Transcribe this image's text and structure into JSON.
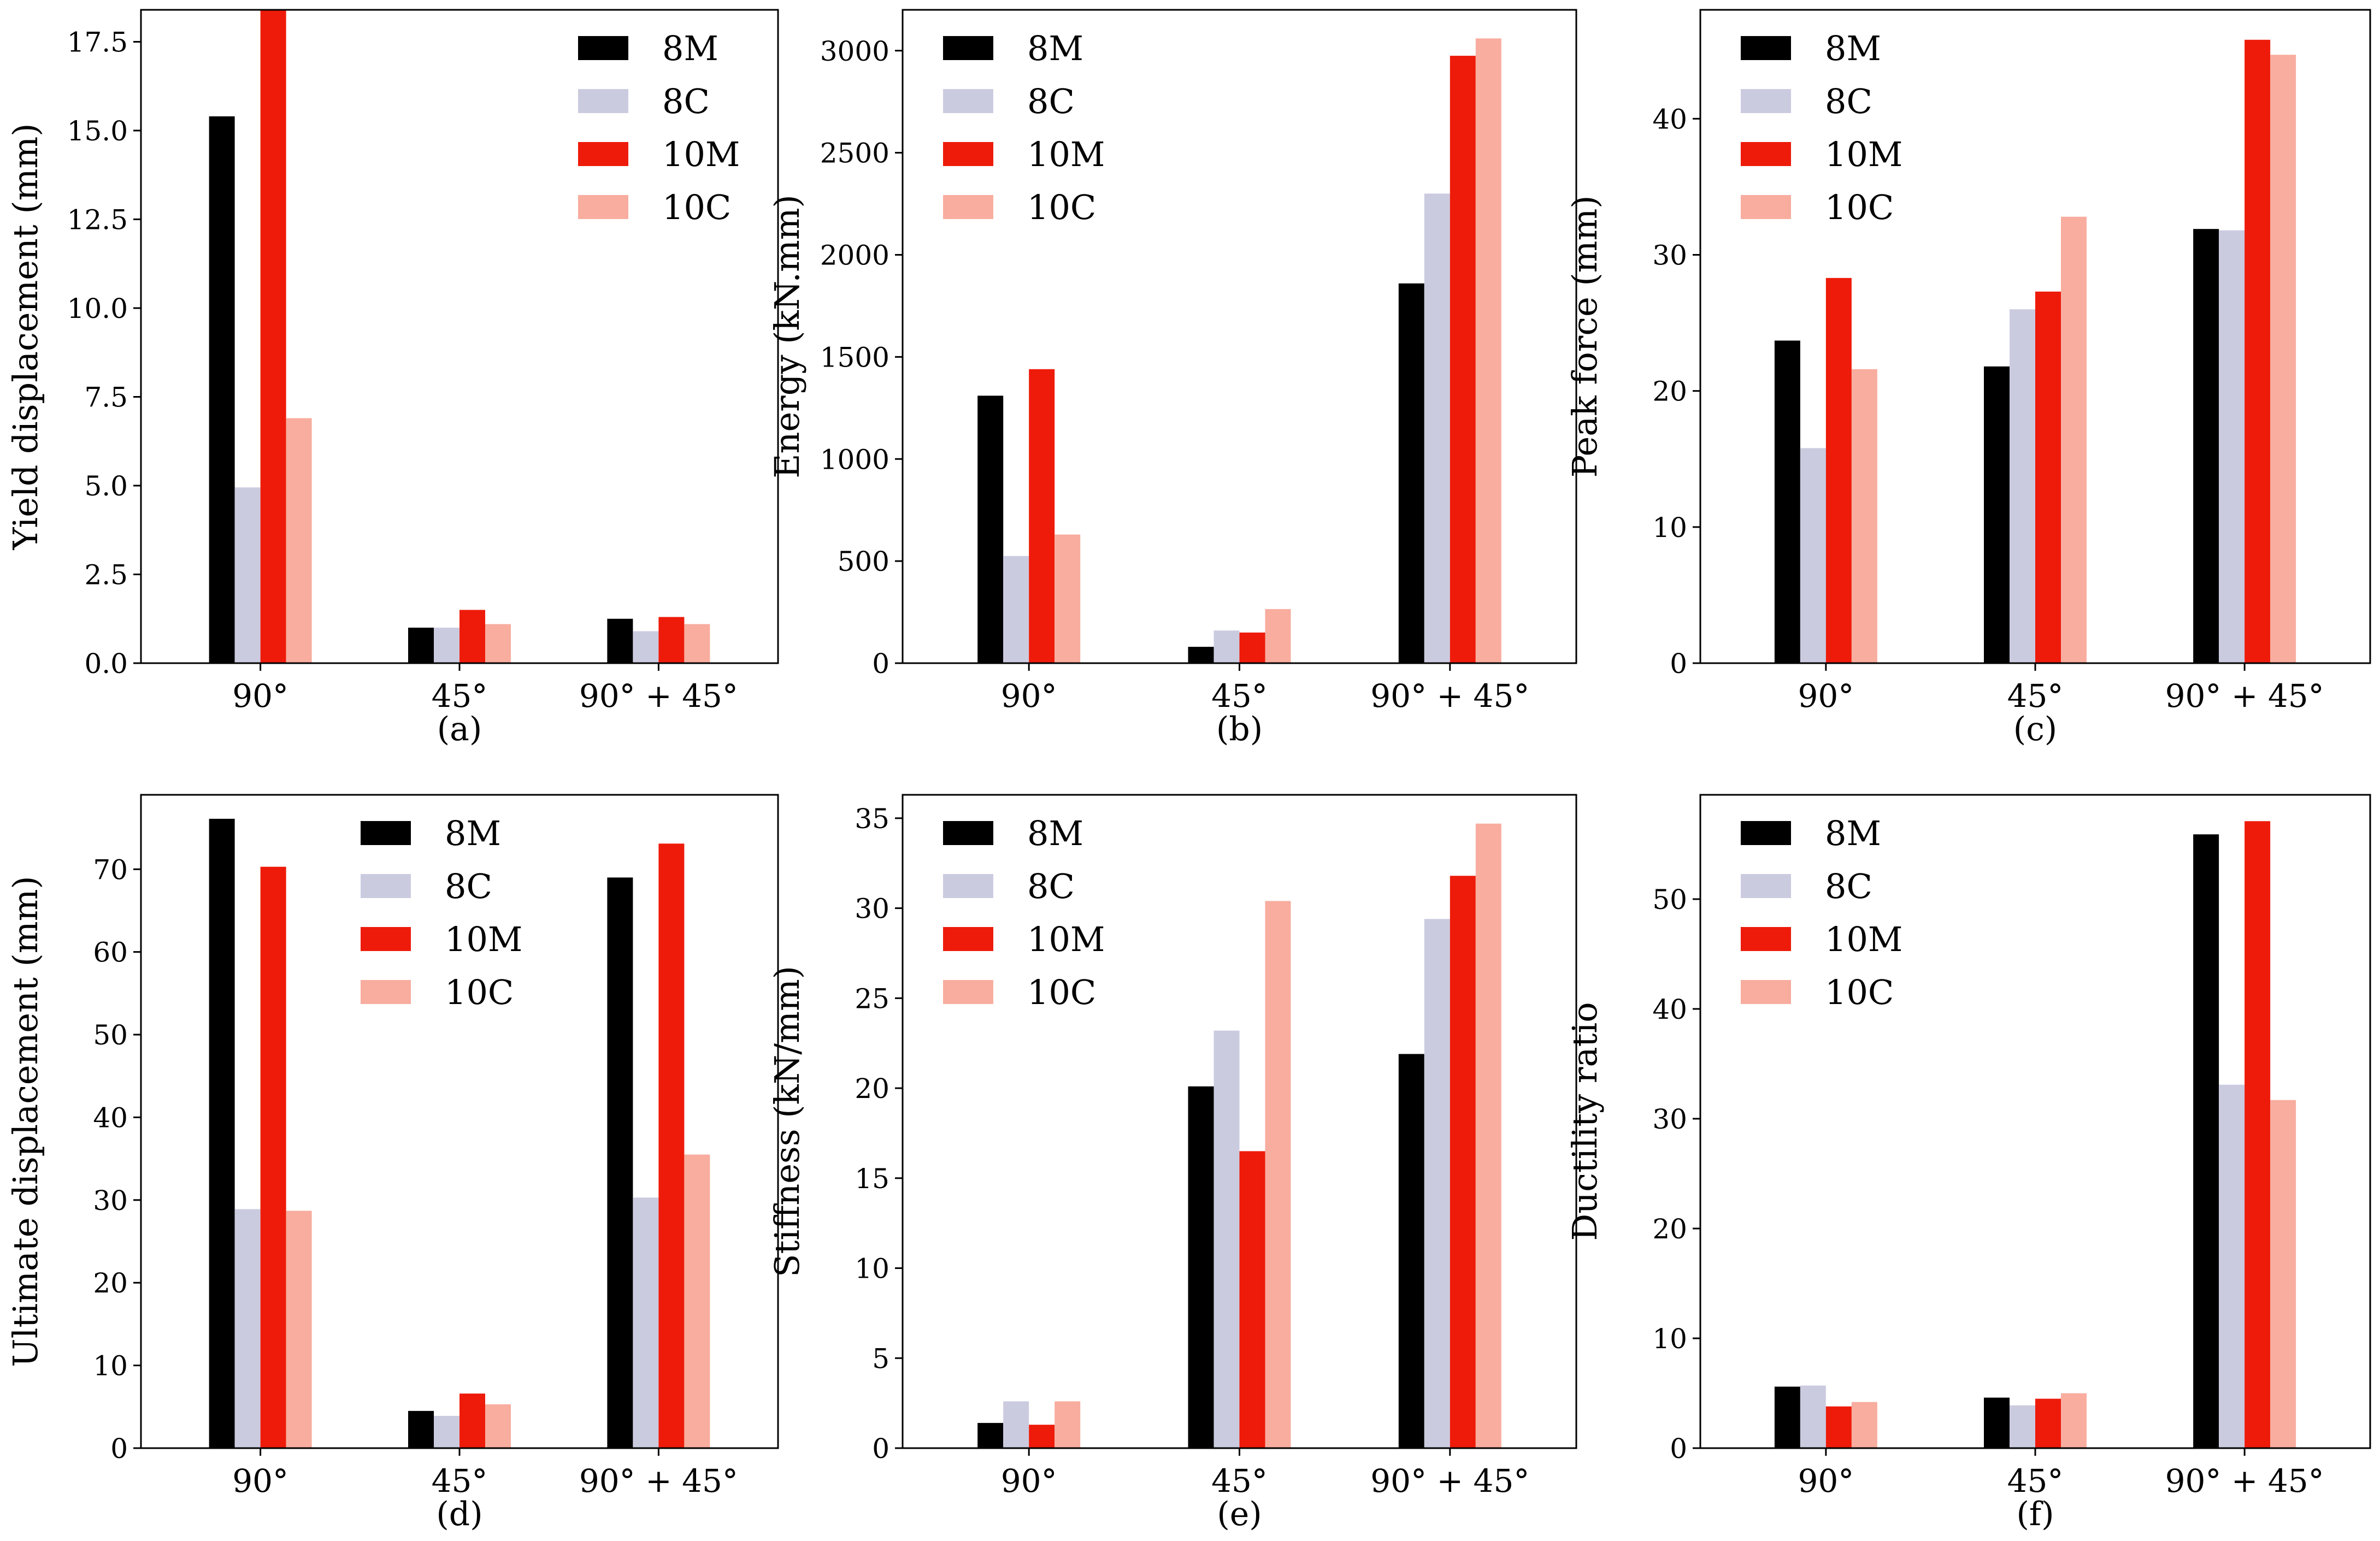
{
  "colors": {
    "8M": "#000000",
    "8C": "#cbcbe0",
    "10M": "#ee1b0a",
    "10C": "#f8ad9f"
  },
  "chart_data": [
    {
      "id": "a",
      "type": "bar",
      "caption": "(a)",
      "ylabel": "Yield displacement (mm)",
      "categories": [
        "90°",
        "45°",
        "90° + 45°"
      ],
      "ylim": [
        0,
        18.4
      ],
      "yticks": [
        0,
        2.5,
        5,
        7.5,
        10,
        12.5,
        15,
        17.5
      ],
      "ytick_labels": [
        "0.0",
        "2.5",
        "5.0",
        "7.5",
        "10.0",
        "12.5",
        "15.0",
        "17.5"
      ],
      "legend_position": "top-right",
      "series": [
        {
          "name": "8M",
          "values": [
            15.4,
            1.0,
            1.25
          ]
        },
        {
          "name": "8C",
          "values": [
            4.95,
            1.0,
            0.9
          ]
        },
        {
          "name": "10M",
          "values": [
            18.4,
            1.5,
            1.3
          ]
        },
        {
          "name": "10C",
          "values": [
            6.9,
            1.1,
            1.1
          ]
        }
      ]
    },
    {
      "id": "b",
      "type": "bar",
      "caption": "(b)",
      "ylabel": "Energy (kN.mm)",
      "categories": [
        "90°",
        "45°",
        "90° + 45°"
      ],
      "ylim": [
        0,
        3200
      ],
      "yticks": [
        0,
        500,
        1000,
        1500,
        2000,
        2500,
        3000
      ],
      "ytick_labels": [
        "0",
        "500",
        "1000",
        "1500",
        "2000",
        "2500",
        "3000"
      ],
      "legend_position": "top-left",
      "series": [
        {
          "name": "8M",
          "values": [
            1310,
            80,
            1860
          ]
        },
        {
          "name": "8C",
          "values": [
            525,
            160,
            2300
          ]
        },
        {
          "name": "10M",
          "values": [
            1440,
            150,
            2975
          ]
        },
        {
          "name": "10C",
          "values": [
            630,
            265,
            3060
          ]
        }
      ]
    },
    {
      "id": "c",
      "type": "bar",
      "caption": "(c)",
      "ylabel": "Peak force (mm)",
      "categories": [
        "90°",
        "45°",
        "90° + 45°"
      ],
      "ylim": [
        0,
        48
      ],
      "yticks": [
        0,
        10,
        20,
        30,
        40
      ],
      "ytick_labels": [
        "0",
        "10",
        "20",
        "30",
        "40"
      ],
      "legend_position": "top-left",
      "series": [
        {
          "name": "8M",
          "values": [
            23.7,
            21.8,
            31.9
          ]
        },
        {
          "name": "8C",
          "values": [
            15.8,
            26.0,
            31.8
          ]
        },
        {
          "name": "10M",
          "values": [
            28.3,
            27.3,
            45.8
          ]
        },
        {
          "name": "10C",
          "values": [
            21.6,
            32.8,
            44.7
          ]
        }
      ]
    },
    {
      "id": "d",
      "type": "bar",
      "caption": "(d)",
      "ylabel": "Ultimate displacement (mm)",
      "categories": [
        "90°",
        "45°",
        "90° + 45°"
      ],
      "ylim": [
        0,
        79
      ],
      "yticks": [
        0,
        10,
        20,
        30,
        40,
        50,
        60,
        70
      ],
      "ytick_labels": [
        "0",
        "10",
        "20",
        "30",
        "40",
        "50",
        "60",
        "70"
      ],
      "legend_position": "top-center",
      "series": [
        {
          "name": "8M",
          "values": [
            76.1,
            4.5,
            69.0
          ]
        },
        {
          "name": "8C",
          "values": [
            28.9,
            3.9,
            30.3
          ]
        },
        {
          "name": "10M",
          "values": [
            70.3,
            6.6,
            73.1
          ]
        },
        {
          "name": "10C",
          "values": [
            28.7,
            5.3,
            35.5
          ]
        }
      ]
    },
    {
      "id": "e",
      "type": "bar",
      "caption": "(e)",
      "ylabel": "Stiffness (kN/mm)",
      "categories": [
        "90°",
        "45°",
        "90° + 45°"
      ],
      "ylim": [
        0,
        36.3
      ],
      "yticks": [
        0,
        5,
        10,
        15,
        20,
        25,
        30,
        35
      ],
      "ytick_labels": [
        "0",
        "5",
        "10",
        "15",
        "20",
        "25",
        "30",
        "35"
      ],
      "legend_position": "top-left",
      "series": [
        {
          "name": "8M",
          "values": [
            1.4,
            20.1,
            21.9
          ]
        },
        {
          "name": "8C",
          "values": [
            2.6,
            23.2,
            29.4
          ]
        },
        {
          "name": "10M",
          "values": [
            1.3,
            16.5,
            31.8
          ]
        },
        {
          "name": "10C",
          "values": [
            2.6,
            30.4,
            34.7
          ]
        }
      ]
    },
    {
      "id": "f",
      "type": "bar",
      "caption": "(f)",
      "ylabel": "Ductility ratio",
      "categories": [
        "90°",
        "45°",
        "90° + 45°"
      ],
      "ylim": [
        0,
        59.5
      ],
      "yticks": [
        0,
        10,
        20,
        30,
        40,
        50
      ],
      "ytick_labels": [
        "0",
        "10",
        "20",
        "30",
        "40",
        "50"
      ],
      "legend_position": "top-left",
      "series": [
        {
          "name": "8M",
          "values": [
            5.6,
            4.6,
            55.9
          ]
        },
        {
          "name": "8C",
          "values": [
            5.7,
            3.9,
            33.1
          ]
        },
        {
          "name": "10M",
          "values": [
            3.8,
            4.5,
            57.1
          ]
        },
        {
          "name": "10C",
          "values": [
            4.2,
            5.0,
            31.7
          ]
        }
      ]
    }
  ]
}
